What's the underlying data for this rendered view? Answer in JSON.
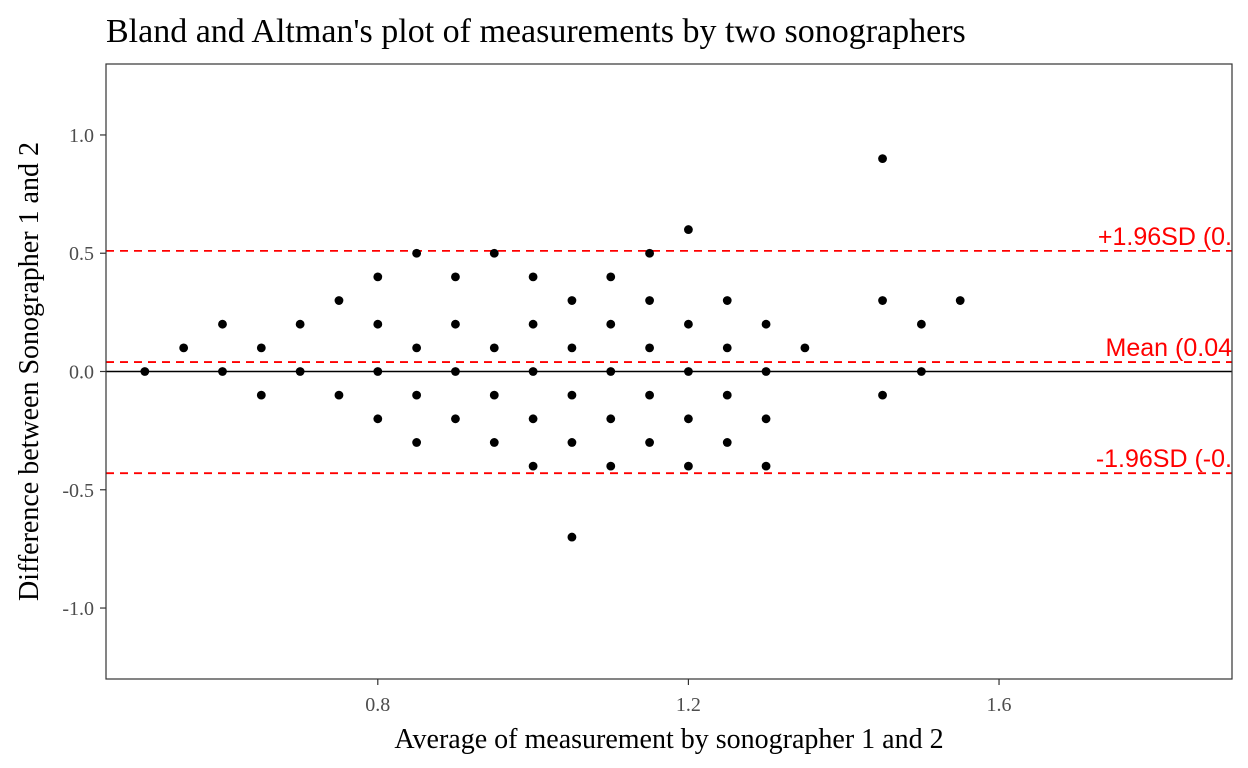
{
  "chart_data": {
    "type": "scatter",
    "title": "Bland and Altman's plot of measurements by two sonographers",
    "xlabel": "Average of measurement by sonographer 1 and 2",
    "ylabel": "Difference between Sonographer 1 and 2",
    "xlim": [
      0.45,
      1.9
    ],
    "ylim": [
      -1.3,
      1.3
    ],
    "xticks": [
      {
        "value": 0.8,
        "label": "0.8"
      },
      {
        "value": 1.2,
        "label": "1.2"
      },
      {
        "value": 1.6,
        "label": "1.6"
      }
    ],
    "yticks": [
      {
        "value": 1.0,
        "label": "1.0"
      },
      {
        "value": 0.5,
        "label": "0.5"
      },
      {
        "value": 0.0,
        "label": "0.0"
      },
      {
        "value": -0.5,
        "label": "-0.5"
      },
      {
        "value": -1.0,
        "label": "-1.0"
      }
    ],
    "grid": false,
    "point_color": "#000000",
    "reference_lines": [
      {
        "y": 0.0,
        "style": "solid",
        "color": "#000000",
        "label": ""
      },
      {
        "y": 0.51,
        "style": "dashed",
        "color": "#ff0000",
        "label": "+1.96SD (0."
      },
      {
        "y": 0.04,
        "style": "dashed",
        "color": "#ff0000",
        "label": "Mean (0.04"
      },
      {
        "y": -0.43,
        "style": "dashed",
        "color": "#ff0000",
        "label": "-1.96SD (-0."
      }
    ],
    "points": [
      {
        "x": 0.5,
        "y": 0.0
      },
      {
        "x": 0.55,
        "y": 0.1
      },
      {
        "x": 0.6,
        "y": 0.2
      },
      {
        "x": 0.6,
        "y": 0.0
      },
      {
        "x": 0.65,
        "y": 0.1
      },
      {
        "x": 0.65,
        "y": -0.1
      },
      {
        "x": 0.7,
        "y": 0.2
      },
      {
        "x": 0.7,
        "y": 0.0
      },
      {
        "x": 0.75,
        "y": 0.3
      },
      {
        "x": 0.75,
        "y": -0.1
      },
      {
        "x": 0.8,
        "y": 0.4
      },
      {
        "x": 0.8,
        "y": 0.2
      },
      {
        "x": 0.8,
        "y": 0.0
      },
      {
        "x": 0.8,
        "y": -0.2
      },
      {
        "x": 0.85,
        "y": 0.5
      },
      {
        "x": 0.85,
        "y": 0.1
      },
      {
        "x": 0.85,
        "y": -0.1
      },
      {
        "x": 0.85,
        "y": -0.3
      },
      {
        "x": 0.9,
        "y": 0.4
      },
      {
        "x": 0.9,
        "y": 0.2
      },
      {
        "x": 0.9,
        "y": 0.0
      },
      {
        "x": 0.9,
        "y": -0.2
      },
      {
        "x": 0.95,
        "y": 0.5
      },
      {
        "x": 0.95,
        "y": 0.1
      },
      {
        "x": 0.95,
        "y": -0.1
      },
      {
        "x": 0.95,
        "y": -0.3
      },
      {
        "x": 1.0,
        "y": 0.4
      },
      {
        "x": 1.0,
        "y": 0.2
      },
      {
        "x": 1.0,
        "y": 0.0
      },
      {
        "x": 1.0,
        "y": -0.2
      },
      {
        "x": 1.0,
        "y": -0.4
      },
      {
        "x": 1.05,
        "y": 0.3
      },
      {
        "x": 1.05,
        "y": 0.1
      },
      {
        "x": 1.05,
        "y": -0.1
      },
      {
        "x": 1.05,
        "y": -0.3
      },
      {
        "x": 1.05,
        "y": -0.7
      },
      {
        "x": 1.1,
        "y": 0.4
      },
      {
        "x": 1.1,
        "y": 0.2
      },
      {
        "x": 1.1,
        "y": 0.0
      },
      {
        "x": 1.1,
        "y": -0.2
      },
      {
        "x": 1.1,
        "y": -0.4
      },
      {
        "x": 1.15,
        "y": 0.5
      },
      {
        "x": 1.15,
        "y": 0.3
      },
      {
        "x": 1.15,
        "y": 0.1
      },
      {
        "x": 1.15,
        "y": -0.1
      },
      {
        "x": 1.15,
        "y": -0.3
      },
      {
        "x": 1.2,
        "y": 0.6
      },
      {
        "x": 1.2,
        "y": 0.2
      },
      {
        "x": 1.2,
        "y": 0.0
      },
      {
        "x": 1.2,
        "y": -0.2
      },
      {
        "x": 1.2,
        "y": -0.4
      },
      {
        "x": 1.25,
        "y": 0.3
      },
      {
        "x": 1.25,
        "y": 0.1
      },
      {
        "x": 1.25,
        "y": -0.1
      },
      {
        "x": 1.25,
        "y": -0.3
      },
      {
        "x": 1.3,
        "y": 0.2
      },
      {
        "x": 1.3,
        "y": 0.0
      },
      {
        "x": 1.3,
        "y": -0.2
      },
      {
        "x": 1.3,
        "y": -0.4
      },
      {
        "x": 1.35,
        "y": 0.1
      },
      {
        "x": 1.45,
        "y": 0.9
      },
      {
        "x": 1.45,
        "y": 0.3
      },
      {
        "x": 1.45,
        "y": -0.1
      },
      {
        "x": 1.5,
        "y": 0.2
      },
      {
        "x": 1.5,
        "y": 0.0
      },
      {
        "x": 1.55,
        "y": 0.3
      }
    ]
  }
}
